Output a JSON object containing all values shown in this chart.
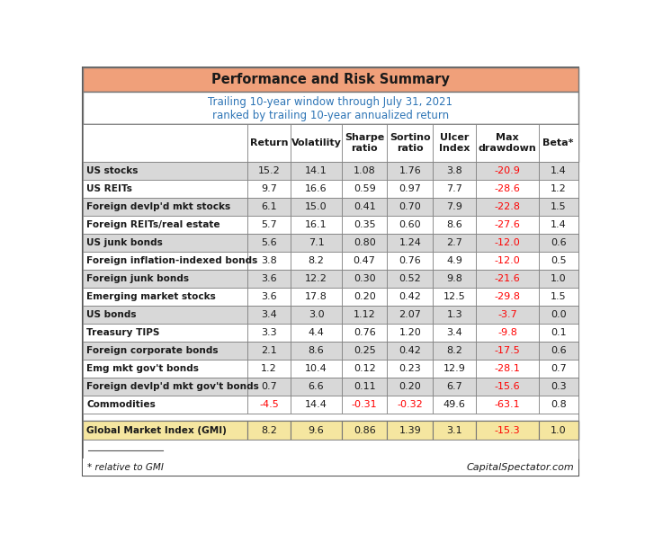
{
  "title": "Performance and Risk Summary",
  "subtitle1": "Trailing 10-year window through July 31, 2021",
  "subtitle2": "ranked by trailing 10-year annualized return",
  "col_headers": [
    "Return",
    "Volatility",
    "Sharpe\nratio",
    "Sortino\nratio",
    "Ulcer\nIndex",
    "Max\ndrawdown",
    "Beta*"
  ],
  "rows": [
    [
      "US stocks",
      "15.2",
      "14.1",
      "1.08",
      "1.76",
      "3.8",
      "-20.9",
      "1.4"
    ],
    [
      "US REITs",
      "9.7",
      "16.6",
      "0.59",
      "0.97",
      "7.7",
      "-28.6",
      "1.2"
    ],
    [
      "Foreign devlp'd mkt stocks",
      "6.1",
      "15.0",
      "0.41",
      "0.70",
      "7.9",
      "-22.8",
      "1.5"
    ],
    [
      "Foreign REITs/real estate",
      "5.7",
      "16.1",
      "0.35",
      "0.60",
      "8.6",
      "-27.6",
      "1.4"
    ],
    [
      "US junk bonds",
      "5.6",
      "7.1",
      "0.80",
      "1.24",
      "2.7",
      "-12.0",
      "0.6"
    ],
    [
      "Foreign inflation-indexed bonds",
      "3.8",
      "8.2",
      "0.47",
      "0.76",
      "4.9",
      "-12.0",
      "0.5"
    ],
    [
      "Foreign junk bonds",
      "3.6",
      "12.2",
      "0.30",
      "0.52",
      "9.8",
      "-21.6",
      "1.0"
    ],
    [
      "Emerging market stocks",
      "3.6",
      "17.8",
      "0.20",
      "0.42",
      "12.5",
      "-29.8",
      "1.5"
    ],
    [
      "US bonds",
      "3.4",
      "3.0",
      "1.12",
      "2.07",
      "1.3",
      "-3.7",
      "0.0"
    ],
    [
      "Treasury TIPS",
      "3.3",
      "4.4",
      "0.76",
      "1.20",
      "3.4",
      "-9.8",
      "0.1"
    ],
    [
      "Foreign corporate bonds",
      "2.1",
      "8.6",
      "0.25",
      "0.42",
      "8.2",
      "-17.5",
      "0.6"
    ],
    [
      "Emg mkt gov't bonds",
      "1.2",
      "10.4",
      "0.12",
      "0.23",
      "12.9",
      "-28.1",
      "0.7"
    ],
    [
      "Foreign devlp'd mkt gov't bonds",
      "0.7",
      "6.6",
      "0.11",
      "0.20",
      "6.7",
      "-15.6",
      "0.3"
    ],
    [
      "Commodities",
      "-4.5",
      "14.4",
      "-0.31",
      "-0.32",
      "49.6",
      "-63.1",
      "0.8"
    ]
  ],
  "gmi_row": [
    "Global Market Index (GMI)",
    "8.2",
    "9.6",
    "0.86",
    "1.39",
    "3.1",
    "-15.3",
    "1.0"
  ],
  "title_bg": "#F0A07A",
  "subtitle_bg": "#FFFFFF",
  "header_bg": "#FFFFFF",
  "odd_row_bg": "#D8D8D8",
  "even_row_bg": "#FFFFFF",
  "gmi_bg": "#F5E6A0",
  "border_color": "#777777",
  "subtitle_color": "#2E75B6",
  "red_color": "#FF0000",
  "dark_color": "#1a1a1a",
  "footer_left": "* relative to GMI",
  "footer_right": "CapitalSpectator.com"
}
